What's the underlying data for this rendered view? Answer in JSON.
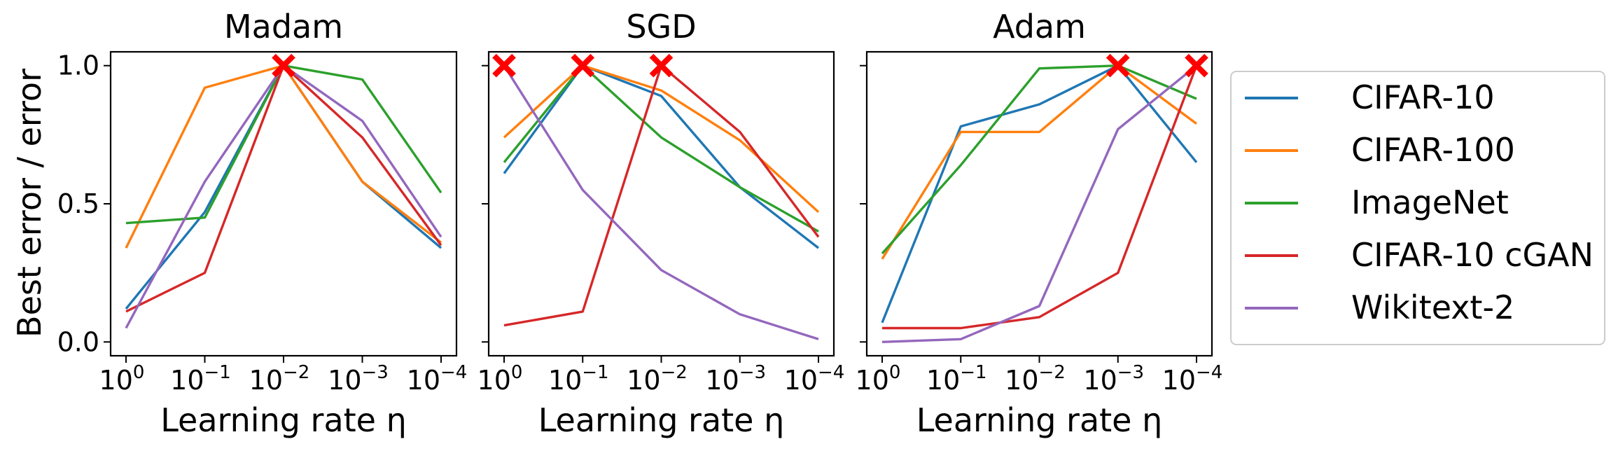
{
  "figure": {
    "ylabel": "Best error / error"
  },
  "legend": [
    {
      "name": "CIFAR-10",
      "color": "#1f77b4"
    },
    {
      "name": "CIFAR-100",
      "color": "#ff7f0e"
    },
    {
      "name": "ImageNet",
      "color": "#2ca02c"
    },
    {
      "name": "CIFAR-10 cGAN",
      "color": "#d62728"
    },
    {
      "name": "Wikitext-2",
      "color": "#9467bd"
    }
  ],
  "chart_data": [
    {
      "type": "line",
      "title": "Madam",
      "xlabel": "Learning rate η",
      "ylabel": "Best error / error",
      "x": [
        1,
        0.1,
        0.01,
        0.001,
        0.0001
      ],
      "x_tick_labels": [
        [
          "10",
          "0"
        ],
        [
          "10",
          "−1"
        ],
        [
          "10",
          "−2"
        ],
        [
          "10",
          "−3"
        ],
        [
          "10",
          "−4"
        ]
      ],
      "y_ticks": [
        "0.0",
        "0.5",
        "1.0"
      ],
      "ylim": [
        -0.05,
        1.05
      ],
      "series": [
        {
          "name": "CIFAR-10",
          "values": [
            0.12,
            0.47,
            1.0,
            0.58,
            0.34
          ]
        },
        {
          "name": "CIFAR-100",
          "values": [
            0.34,
            0.92,
            1.0,
            0.58,
            0.36
          ]
        },
        {
          "name": "ImageNet",
          "values": [
            0.43,
            0.45,
            1.0,
            0.95,
            0.54
          ]
        },
        {
          "name": "CIFAR-10 cGAN",
          "values": [
            0.11,
            0.25,
            1.0,
            0.74,
            0.35
          ]
        },
        {
          "name": "Wikitext-2",
          "values": [
            0.05,
            0.58,
            1.0,
            0.8,
            0.38
          ]
        }
      ],
      "best_marker_x_index": [
        2
      ]
    },
    {
      "type": "line",
      "title": "SGD",
      "xlabel": "Learning rate η",
      "x": [
        1,
        0.1,
        0.01,
        0.001,
        0.0001
      ],
      "x_tick_labels": [
        [
          "10",
          "0"
        ],
        [
          "10",
          "−1"
        ],
        [
          "10",
          "−2"
        ],
        [
          "10",
          "−3"
        ],
        [
          "10",
          "−4"
        ]
      ],
      "ylim": [
        -0.05,
        1.05
      ],
      "series": [
        {
          "name": "CIFAR-10",
          "values": [
            0.61,
            1.0,
            0.89,
            0.56,
            0.34
          ]
        },
        {
          "name": "CIFAR-100",
          "values": [
            0.74,
            1.0,
            0.91,
            0.73,
            0.47
          ]
        },
        {
          "name": "ImageNet",
          "values": [
            0.65,
            1.0,
            0.74,
            0.56,
            0.4
          ]
        },
        {
          "name": "CIFAR-10 cGAN",
          "values": [
            0.06,
            0.11,
            1.0,
            0.76,
            0.38
          ]
        },
        {
          "name": "Wikitext-2",
          "values": [
            1.0,
            0.55,
            0.26,
            0.1,
            0.01
          ]
        }
      ],
      "best_marker_x_index": [
        0,
        1,
        2
      ]
    },
    {
      "type": "line",
      "title": "Adam",
      "xlabel": "Learning rate η",
      "x": [
        1,
        0.1,
        0.01,
        0.001,
        0.0001
      ],
      "x_tick_labels": [
        [
          "10",
          "0"
        ],
        [
          "10",
          "−1"
        ],
        [
          "10",
          "−2"
        ],
        [
          "10",
          "−3"
        ],
        [
          "10",
          "−4"
        ]
      ],
      "ylim": [
        -0.05,
        1.05
      ],
      "series": [
        {
          "name": "CIFAR-10",
          "values": [
            0.07,
            0.78,
            0.86,
            1.0,
            0.65
          ]
        },
        {
          "name": "CIFAR-100",
          "values": [
            0.3,
            0.76,
            0.76,
            1.0,
            0.79
          ]
        },
        {
          "name": "ImageNet",
          "values": [
            0.32,
            0.64,
            0.99,
            1.0,
            0.88
          ]
        },
        {
          "name": "CIFAR-10 cGAN",
          "values": [
            0.05,
            0.05,
            0.09,
            0.25,
            1.0
          ]
        },
        {
          "name": "Wikitext-2",
          "values": [
            0.0,
            0.01,
            0.13,
            0.77,
            1.0
          ]
        }
      ],
      "best_marker_x_index": [
        3,
        4
      ]
    }
  ]
}
